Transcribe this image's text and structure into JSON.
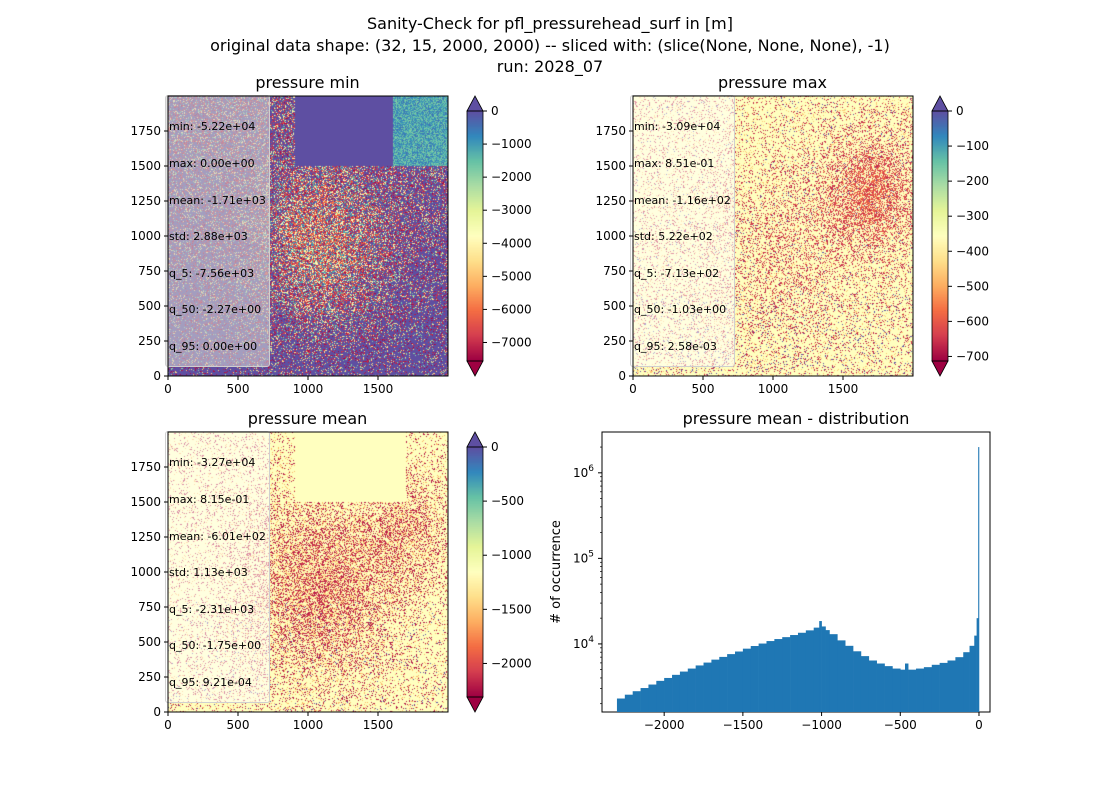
{
  "figure": {
    "title_lines": [
      "Sanity-Check for pfl_pressurehead_surf in [m]",
      "original data shape: (32, 15, 2000, 2000) -- sliced with: (slice(None, None, None), -1)",
      "run: 2028_07"
    ]
  },
  "chart_data": [
    {
      "type": "heatmap",
      "title": "pressure min",
      "x_ticks": [
        "0",
        "500",
        "1000",
        "1500"
      ],
      "y_ticks": [
        "0",
        "250",
        "500",
        "750",
        "1000",
        "1250",
        "1500",
        "1750"
      ],
      "x_range": [
        0,
        2000
      ],
      "y_range": [
        0,
        2000
      ],
      "colormap": "Spectral",
      "colorbar": {
        "ticks": [
          "0",
          "−1000",
          "−2000",
          "−3000",
          "−4000",
          "−5000",
          "−6000",
          "−7000"
        ],
        "range": [
          -7560,
          0
        ],
        "extend": "both"
      },
      "stats": [
        "min: -5.22e+04",
        "max: 0.00e+00",
        "mean: -1.71e+03",
        "std: 2.88e+03",
        "q_5: -7.56e+03",
        "q_50: -2.27e+00",
        "q_95: 0.00e+00"
      ]
    },
    {
      "type": "heatmap",
      "title": "pressure max",
      "x_ticks": [
        "0",
        "500",
        "1000",
        "1500"
      ],
      "y_ticks": [
        "0",
        "250",
        "500",
        "750",
        "1000",
        "1250",
        "1500",
        "1750"
      ],
      "x_range": [
        0,
        2000
      ],
      "y_range": [
        0,
        2000
      ],
      "colormap": "Spectral",
      "colorbar": {
        "ticks": [
          "0",
          "−100",
          "−200",
          "−300",
          "−400",
          "−500",
          "−600",
          "−700"
        ],
        "range": [
          -713,
          0
        ],
        "extend": "both"
      },
      "stats": [
        "min: -3.09e+04",
        "max: 8.51e-01",
        "mean: -1.16e+02",
        "std: 5.22e+02",
        "q_5: -7.13e+02",
        "q_50: -1.03e+00",
        "q_95: 2.58e-03"
      ]
    },
    {
      "type": "heatmap",
      "title": "pressure mean",
      "x_ticks": [
        "0",
        "500",
        "1000",
        "1500"
      ],
      "y_ticks": [
        "0",
        "250",
        "500",
        "750",
        "1000",
        "1250",
        "1500",
        "1750"
      ],
      "x_range": [
        0,
        2000
      ],
      "y_range": [
        0,
        2000
      ],
      "colormap": "Spectral",
      "colorbar": {
        "ticks": [
          "0",
          "−500",
          "−1000",
          "−1500",
          "−2000"
        ],
        "range": [
          -2310,
          0
        ],
        "extend": "both"
      },
      "stats": [
        "min: -3.27e+04",
        "max: 8.15e-01",
        "mean: -6.01e+02",
        "std: 1.13e+03",
        "q_5: -2.31e+03",
        "q_50: -1.75e+00",
        "q_95: 9.21e-04"
      ]
    },
    {
      "type": "bar",
      "title": "pressure mean - distribution",
      "ylabel": "# of occurrence",
      "xlabel": "",
      "y_scale": "log",
      "x_ticks": [
        "−2000",
        "−1500",
        "−1000",
        "−500",
        "0"
      ],
      "y_ticks": [
        "10^4",
        "10^5",
        "10^6"
      ],
      "xlim": [
        -2395,
        70
      ],
      "ylim": [
        1600,
        3000000
      ],
      "color": "#1f77b4",
      "histogram": [
        {
          "x": -2300,
          "y": 2300
        },
        {
          "x": -2250,
          "y": 2550
        },
        {
          "x": -2200,
          "y": 2800
        },
        {
          "x": -2150,
          "y": 3050
        },
        {
          "x": -2100,
          "y": 3350
        },
        {
          "x": -2050,
          "y": 3700
        },
        {
          "x": -2000,
          "y": 4000
        },
        {
          "x": -1950,
          "y": 4350
        },
        {
          "x": -1900,
          "y": 4750
        },
        {
          "x": -1850,
          "y": 5150
        },
        {
          "x": -1800,
          "y": 5600
        },
        {
          "x": -1750,
          "y": 6050
        },
        {
          "x": -1700,
          "y": 6550
        },
        {
          "x": -1650,
          "y": 7050
        },
        {
          "x": -1600,
          "y": 7600
        },
        {
          "x": -1550,
          "y": 8150
        },
        {
          "x": -1500,
          "y": 8800
        },
        {
          "x": -1450,
          "y": 9450
        },
        {
          "x": -1400,
          "y": 10100
        },
        {
          "x": -1350,
          "y": 10800
        },
        {
          "x": -1300,
          "y": 11400
        },
        {
          "x": -1250,
          "y": 12000
        },
        {
          "x": -1200,
          "y": 12700
        },
        {
          "x": -1150,
          "y": 13500
        },
        {
          "x": -1100,
          "y": 14400
        },
        {
          "x": -1050,
          "y": 15500
        },
        {
          "x": -1015,
          "y": 18500
        },
        {
          "x": -1000,
          "y": 16000
        },
        {
          "x": -975,
          "y": 14500
        },
        {
          "x": -950,
          "y": 13000
        },
        {
          "x": -900,
          "y": 11000
        },
        {
          "x": -850,
          "y": 9500
        },
        {
          "x": -800,
          "y": 8200
        },
        {
          "x": -750,
          "y": 7200
        },
        {
          "x": -700,
          "y": 6400
        },
        {
          "x": -650,
          "y": 5900
        },
        {
          "x": -600,
          "y": 5500
        },
        {
          "x": -550,
          "y": 5150
        },
        {
          "x": -500,
          "y": 5000
        },
        {
          "x": -470,
          "y": 5900
        },
        {
          "x": -450,
          "y": 5000
        },
        {
          "x": -400,
          "y": 5150
        },
        {
          "x": -350,
          "y": 5350
        },
        {
          "x": -300,
          "y": 5700
        },
        {
          "x": -250,
          "y": 6000
        },
        {
          "x": -200,
          "y": 6400
        },
        {
          "x": -150,
          "y": 7000
        },
        {
          "x": -100,
          "y": 8000
        },
        {
          "x": -60,
          "y": 9500
        },
        {
          "x": -30,
          "y": 12500
        },
        {
          "x": -15,
          "y": 20000
        },
        {
          "x": -5,
          "y": 2000000
        }
      ]
    }
  ]
}
